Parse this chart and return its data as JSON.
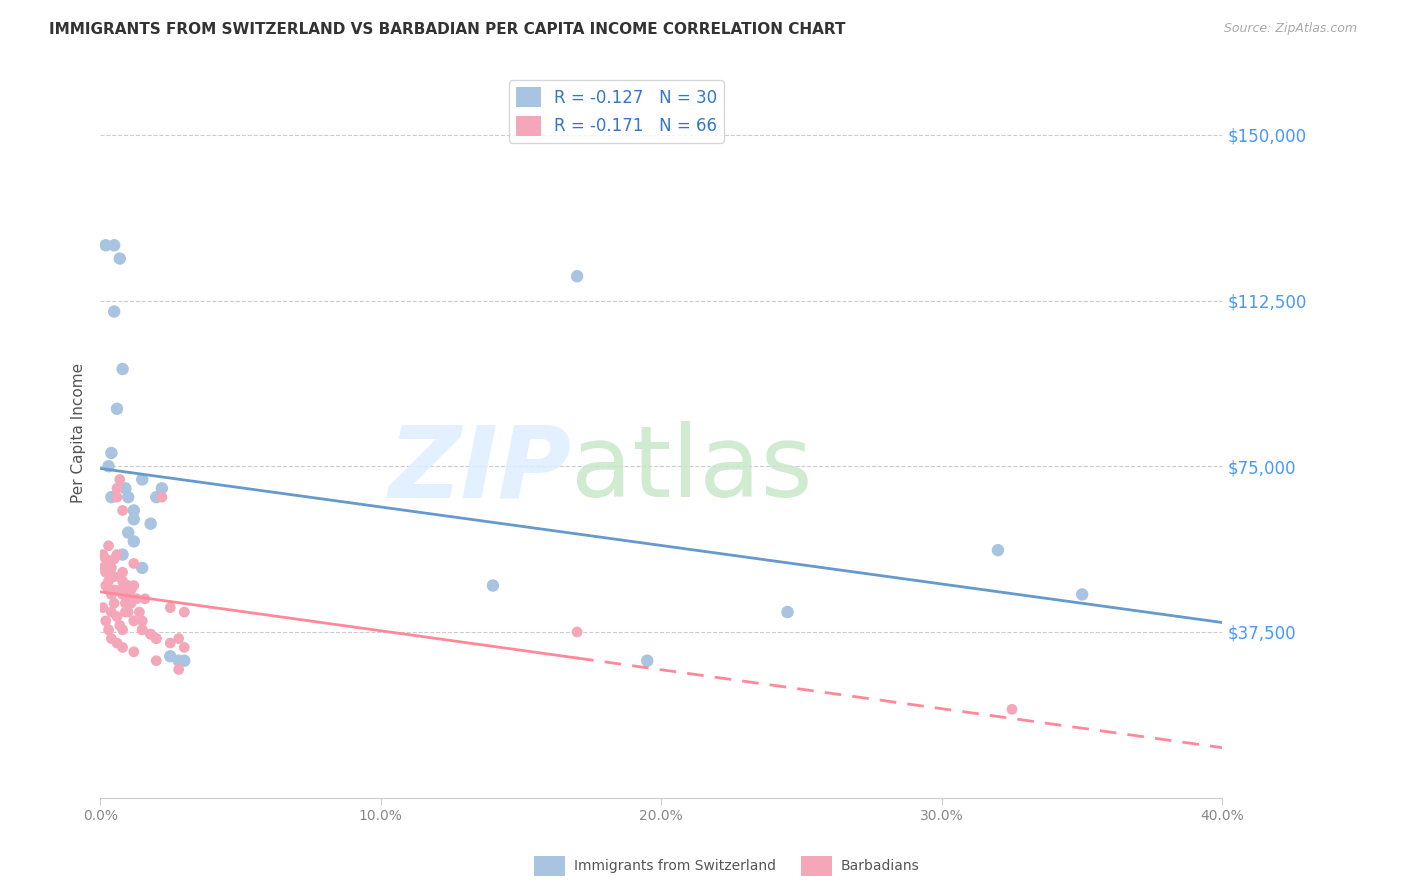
{
  "title": "IMMIGRANTS FROM SWITZERLAND VS BARBADIAN PER CAPITA INCOME CORRELATION CHART",
  "source": "Source: ZipAtlas.com",
  "ylabel": "Per Capita Income",
  "ytick_labels": [
    "$37,500",
    "$75,000",
    "$112,500",
    "$150,000"
  ],
  "ytick_values": [
    37500,
    75000,
    112500,
    150000
  ],
  "xlim": [
    0.0,
    0.4
  ],
  "ylim": [
    0,
    165000
  ],
  "legend_entry1": "R = -0.127   N = 30",
  "legend_entry2": "R = -0.171   N = 66",
  "legend_label1": "Immigrants from Switzerland",
  "legend_label2": "Barbadians",
  "color_blue": "#a8c4e0",
  "color_pink": "#f4a7b9",
  "color_blue_line": "#6699cc",
  "color_pink_line": "#ff8899",
  "blue_scatter_x": [
    0.002,
    0.005,
    0.007,
    0.009,
    0.01,
    0.012,
    0.005,
    0.008,
    0.012,
    0.015,
    0.018,
    0.02,
    0.003,
    0.004,
    0.004,
    0.006,
    0.008,
    0.01,
    0.012,
    0.015,
    0.025,
    0.03,
    0.022,
    0.028,
    0.17,
    0.32,
    0.35,
    0.245,
    0.195,
    0.14
  ],
  "blue_scatter_y": [
    125000,
    125000,
    122000,
    70000,
    68000,
    65000,
    110000,
    97000,
    63000,
    72000,
    62000,
    68000,
    75000,
    78000,
    68000,
    88000,
    55000,
    60000,
    58000,
    52000,
    32000,
    31000,
    70000,
    31000,
    118000,
    56000,
    46000,
    42000,
    31000,
    48000
  ],
  "pink_scatter_x": [
    0.001,
    0.001,
    0.002,
    0.002,
    0.002,
    0.003,
    0.003,
    0.003,
    0.004,
    0.004,
    0.004,
    0.005,
    0.005,
    0.005,
    0.006,
    0.006,
    0.007,
    0.007,
    0.008,
    0.008,
    0.008,
    0.009,
    0.009,
    0.01,
    0.01,
    0.011,
    0.011,
    0.012,
    0.012,
    0.013,
    0.014,
    0.015,
    0.015,
    0.016,
    0.018,
    0.02,
    0.022,
    0.025,
    0.028,
    0.03,
    0.003,
    0.004,
    0.005,
    0.006,
    0.007,
    0.008,
    0.006,
    0.008,
    0.01,
    0.012,
    0.015,
    0.018,
    0.02,
    0.025,
    0.03,
    0.17,
    0.325,
    0.001,
    0.002,
    0.003,
    0.004,
    0.006,
    0.008,
    0.012,
    0.02,
    0.028
  ],
  "pink_scatter_y": [
    55000,
    52000,
    54000,
    51000,
    48000,
    53000,
    49000,
    47000,
    52000,
    50000,
    46000,
    54000,
    50000,
    47000,
    68000,
    55000,
    72000,
    47000,
    51000,
    49000,
    46000,
    44000,
    42000,
    48000,
    45000,
    47000,
    44000,
    53000,
    48000,
    45000,
    42000,
    40000,
    38000,
    45000,
    37000,
    36000,
    68000,
    43000,
    36000,
    34000,
    57000,
    42000,
    44000,
    41000,
    39000,
    38000,
    70000,
    65000,
    42000,
    40000,
    38000,
    37000,
    36000,
    35000,
    42000,
    37500,
    20000,
    43000,
    40000,
    38000,
    36000,
    35000,
    34000,
    33000,
    31000,
    29000
  ]
}
